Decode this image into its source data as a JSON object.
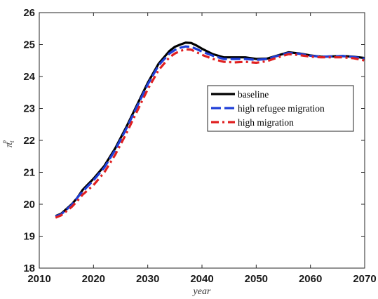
{
  "chart_data": {
    "type": "line",
    "title": "",
    "xlabel": "year",
    "ylabel": "π^p_t",
    "xlim": [
      2010,
      2070
    ],
    "ylim": [
      18,
      26
    ],
    "xticks": [
      "2010",
      "2020",
      "2030",
      "2040",
      "2050",
      "2060",
      "2070"
    ],
    "yticks": [
      "18",
      "19",
      "20",
      "21",
      "22",
      "23",
      "24",
      "25",
      "26"
    ],
    "grid": false,
    "legend_position": "right",
    "series": [
      {
        "name": "baseline",
        "color": "#000000",
        "style": "solid",
        "x": [
          2013,
          2014,
          2015,
          2016,
          2017,
          2018,
          2020,
          2022,
          2024,
          2026,
          2028,
          2030,
          2032,
          2034,
          2035,
          2036,
          2037,
          2038,
          2039,
          2040,
          2042,
          2044,
          2046,
          2048,
          2050,
          2052,
          2054,
          2056,
          2058,
          2060,
          2062,
          2064,
          2066,
          2068,
          2070
        ],
        "y": [
          19.63,
          19.7,
          19.85,
          20.0,
          20.2,
          20.45,
          20.8,
          21.2,
          21.75,
          22.4,
          23.1,
          23.8,
          24.4,
          24.8,
          24.93,
          25.0,
          25.06,
          25.05,
          24.97,
          24.87,
          24.7,
          24.6,
          24.6,
          24.6,
          24.55,
          24.56,
          24.66,
          24.76,
          24.72,
          24.66,
          24.62,
          24.63,
          24.64,
          24.62,
          24.58
        ]
      },
      {
        "name": "high refugee migration",
        "color": "#1f3fd8",
        "style": "dashed",
        "x": [
          2013,
          2014,
          2015,
          2016,
          2017,
          2018,
          2020,
          2022,
          2024,
          2026,
          2028,
          2030,
          2032,
          2034,
          2035,
          2036,
          2037,
          2038,
          2039,
          2040,
          2042,
          2044,
          2046,
          2048,
          2050,
          2052,
          2054,
          2056,
          2058,
          2060,
          2062,
          2064,
          2066,
          2068,
          2070
        ],
        "y": [
          19.62,
          19.68,
          19.83,
          19.98,
          20.2,
          20.4,
          20.75,
          21.15,
          21.7,
          22.35,
          23.05,
          23.75,
          24.35,
          24.72,
          24.83,
          24.9,
          24.94,
          24.93,
          24.86,
          24.78,
          24.65,
          24.55,
          24.55,
          24.55,
          24.52,
          24.55,
          24.65,
          24.74,
          24.71,
          24.65,
          24.62,
          24.63,
          24.64,
          24.61,
          24.56
        ]
      },
      {
        "name": "high migration",
        "color": "#e02020",
        "style": "dashed",
        "x": [
          2013,
          2014,
          2015,
          2016,
          2017,
          2018,
          2020,
          2022,
          2024,
          2026,
          2028,
          2030,
          2032,
          2034,
          2035,
          2036,
          2037,
          2038,
          2039,
          2040,
          2042,
          2044,
          2046,
          2048,
          2050,
          2052,
          2054,
          2056,
          2058,
          2060,
          2062,
          2064,
          2066,
          2068,
          2070
        ],
        "y": [
          19.58,
          19.65,
          19.78,
          19.92,
          20.1,
          20.3,
          20.6,
          21.0,
          21.55,
          22.2,
          22.9,
          23.6,
          24.2,
          24.6,
          24.72,
          24.8,
          24.85,
          24.84,
          24.76,
          24.68,
          24.55,
          24.46,
          24.44,
          24.46,
          24.43,
          24.48,
          24.6,
          24.7,
          24.67,
          24.62,
          24.6,
          24.6,
          24.6,
          24.57,
          24.5
        ]
      }
    ]
  }
}
